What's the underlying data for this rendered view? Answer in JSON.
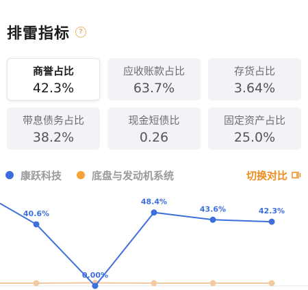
{
  "header": {
    "title": "排雷指标",
    "help_icon": "question-circle-icon"
  },
  "metrics": [
    {
      "label": "商誉占比",
      "value": "42.3%",
      "active": true
    },
    {
      "label": "应收账款占比",
      "value": "63.7%"
    },
    {
      "label": "存货占比",
      "value": "3.64%"
    },
    {
      "label": "带息债务占比",
      "value": "38.2%"
    },
    {
      "label": "现金短债比",
      "value": "0.26"
    },
    {
      "label": "固定资产占比",
      "value": "25.0%"
    }
  ],
  "legend": {
    "series": [
      {
        "name": "康跃科技",
        "color": "#3d6fdc"
      },
      {
        "name": "底盘与发动机系统",
        "color": "#f7a23b"
      }
    ],
    "switch_label": "切换对比",
    "switch_icon": "swap-compare-icon"
  },
  "chart_data": {
    "type": "line",
    "categories": [
      "",
      "",
      "",
      "",
      ""
    ],
    "series": [
      {
        "name": "康跃科技",
        "color": "#3d6fdc",
        "values": [
          40.6,
          0.0,
          48.4,
          43.6,
          42.3
        ],
        "labels": [
          "40.6%",
          "0.00%",
          "48.4%",
          "43.6%",
          "42.3%"
        ]
      },
      {
        "name": "底盘与发动机系统",
        "color": "#f5c9a0",
        "values": [
          1.8,
          2.0,
          1.8,
          1.8,
          1.8
        ]
      }
    ],
    "ylim": [
      0,
      55
    ],
    "grid": false
  }
}
